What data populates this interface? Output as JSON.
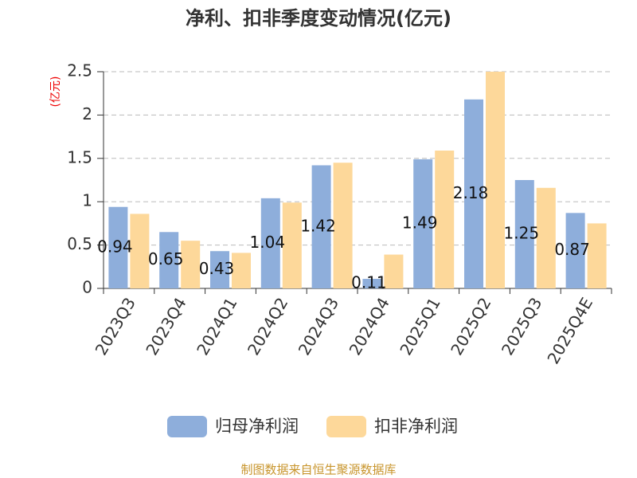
{
  "chart_data": {
    "type": "bar",
    "title": "净利、扣非季度变动情况(亿元)",
    "y_label": "(亿元)",
    "categories": [
      "2023Q3",
      "2023Q4",
      "2024Q1",
      "2024Q2",
      "2024Q3",
      "2024Q4",
      "2025Q1",
      "2025Q2",
      "2025Q3",
      "2025Q4E"
    ],
    "series": [
      {
        "name": "归母净利润",
        "color": "#8eaedb",
        "values": [
          0.94,
          0.65,
          0.43,
          1.04,
          1.42,
          0.11,
          1.49,
          2.18,
          1.25,
          0.87
        ]
      },
      {
        "name": "扣非净利润",
        "color": "#fdd89a",
        "values": [
          0.86,
          0.55,
          0.41,
          0.99,
          1.45,
          0.39,
          1.59,
          2.5,
          1.16,
          0.75
        ]
      }
    ],
    "ylim": [
      0,
      2.5
    ],
    "yticks": [
      0,
      0.5,
      1,
      1.5,
      2,
      2.5
    ],
    "grid": true,
    "source": "制图数据来自恒生聚源数据库"
  }
}
